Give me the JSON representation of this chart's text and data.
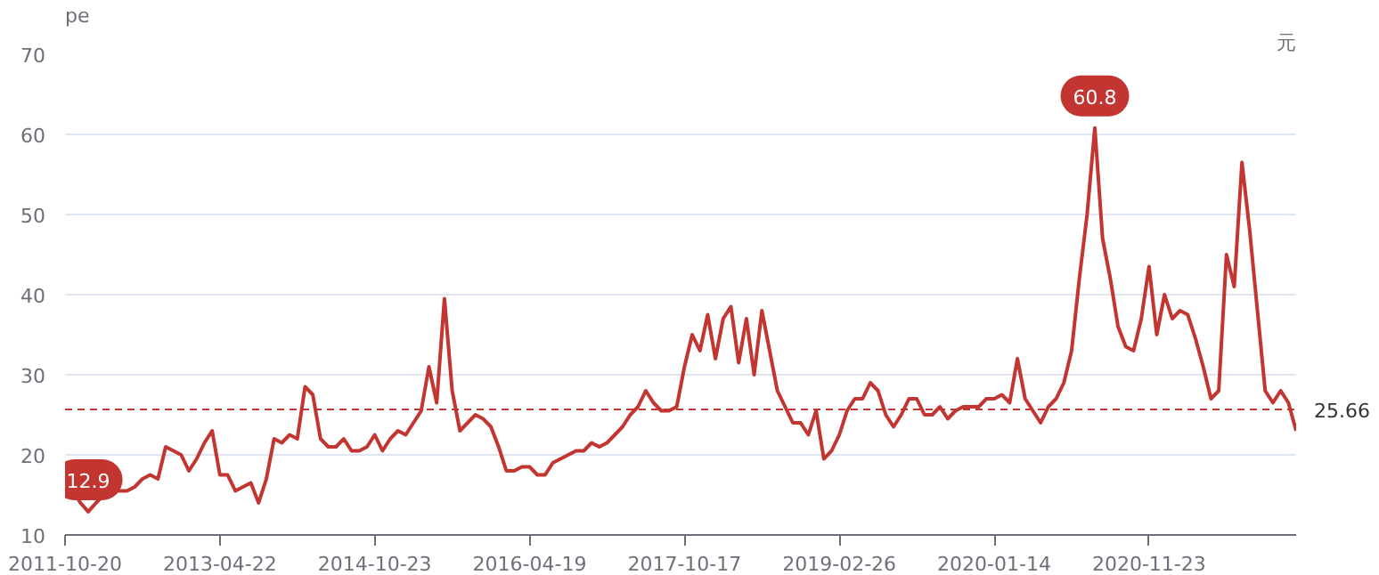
{
  "chart_data": {
    "type": "line",
    "ylabel": "pe",
    "y2label": "元",
    "categories": [
      "2011-10-20",
      null,
      null,
      null,
      null,
      null,
      null,
      null,
      null,
      null,
      null,
      null,
      null,
      null,
      null,
      null,
      null,
      null,
      null,
      null,
      "2013-04-22",
      null,
      null,
      null,
      null,
      null,
      null,
      null,
      null,
      null,
      null,
      null,
      null,
      null,
      null,
      null,
      null,
      null,
      null,
      null,
      "2014-10-23",
      null,
      null,
      null,
      null,
      null,
      null,
      null,
      null,
      null,
      null,
      null,
      null,
      null,
      null,
      null,
      null,
      null,
      null,
      null,
      "2016-04-19",
      null,
      null,
      null,
      null,
      null,
      null,
      null,
      null,
      null,
      null,
      null,
      null,
      null,
      null,
      null,
      null,
      null,
      null,
      null,
      "2017-10-17",
      null,
      null,
      null,
      null,
      null,
      null,
      null,
      null,
      null,
      null,
      null,
      null,
      null,
      null,
      null,
      null,
      null,
      null,
      null,
      "2019-02-26",
      null,
      null,
      null,
      null,
      null,
      null,
      null,
      null,
      null,
      null,
      null,
      null,
      null,
      null,
      null,
      null,
      null,
      null,
      null,
      "2020-01-14",
      null,
      null,
      null,
      null,
      null,
      null,
      null,
      null,
      null,
      null,
      null,
      null,
      null,
      null,
      null,
      null,
      null,
      null,
      null,
      "2020-11-23",
      null,
      null,
      null,
      null,
      null,
      null,
      null,
      null,
      null,
      null,
      null,
      null,
      null,
      null,
      null,
      null,
      null,
      null,
      null
    ],
    "series": [
      {
        "color": "#c23531",
        "values": [
          15.5,
          15.5,
          14,
          12.9,
          14,
          15,
          15.5,
          15.5,
          15.5,
          16,
          17,
          17.5,
          17,
          21,
          20.5,
          20,
          18,
          19.5,
          21.5,
          23,
          17.5,
          17.5,
          15.5,
          16,
          16.5,
          14,
          17,
          22,
          21.5,
          22.5,
          22,
          28.5,
          27.5,
          22,
          21,
          21,
          22,
          20.5,
          20.5,
          21,
          22.5,
          20.5,
          22,
          23,
          22.5,
          24,
          25.5,
          31,
          26.5,
          39.5,
          28,
          23,
          24,
          25,
          24.5,
          23.5,
          21,
          18,
          18,
          18.5,
          18.5,
          17.5,
          17.5,
          19,
          19.5,
          20,
          20.5,
          20.5,
          21.5,
          21,
          21.5,
          22.5,
          23.5,
          25,
          26,
          28,
          26.5,
          25.5,
          25.5,
          26,
          31,
          35,
          33,
          37.5,
          32,
          37,
          38.5,
          31.5,
          37,
          30,
          38,
          33,
          28,
          26,
          24,
          24,
          22.5,
          25.5,
          19.5,
          20.5,
          22.5,
          25.5,
          27,
          27,
          29,
          28,
          25,
          23.5,
          25,
          27,
          27,
          25,
          25,
          26,
          24.5,
          25.5,
          26,
          26,
          26,
          27,
          27,
          27.5,
          26.5,
          32,
          27,
          25.5,
          24,
          26,
          27,
          29,
          33,
          42,
          50,
          60.8,
          47,
          42,
          36,
          33.5,
          33,
          37,
          43.5,
          35,
          40,
          37,
          38,
          37.5,
          34.5,
          31,
          27,
          28,
          45,
          41,
          56.5,
          48,
          38,
          28,
          26.5,
          28,
          26.5,
          23
        ]
      }
    ],
    "ylim": [
      10,
      70
    ],
    "yticks": [
      10,
      20,
      30,
      40,
      50,
      60,
      70
    ],
    "grid": "y",
    "marker": "none",
    "line_style": "solid",
    "ref_lines": [
      {
        "axis": "y",
        "value": 25.66,
        "label": "25.66",
        "color": "#c23531",
        "line_style": "dashed"
      }
    ],
    "annotations": [
      {
        "text": "60.8",
        "y": 60.8
      },
      {
        "text": "12.9",
        "y": 12.9
      }
    ]
  }
}
